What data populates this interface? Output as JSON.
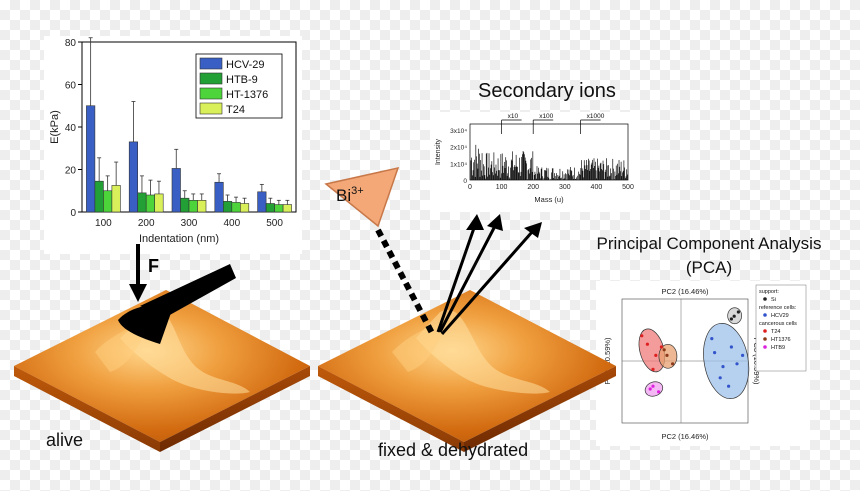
{
  "chart_data": [
    {
      "type": "bar",
      "ylabel": "E(kPa)",
      "xlabel": "Indentation (nm)",
      "categories": [
        "100",
        "200",
        "300",
        "400",
        "500"
      ],
      "ylim": [
        0,
        80
      ],
      "yticks": [
        "0",
        "20",
        "40",
        "60",
        "80"
      ],
      "legend_position": "top-right",
      "series": [
        {
          "name": "HCV-29",
          "color": "#3a5fc4",
          "values": [
            50,
            33,
            20.5,
            14,
            9.5
          ],
          "errors": [
            32,
            19,
            9,
            4,
            3.5
          ]
        },
        {
          "name": "HTB-9",
          "color": "#22a035",
          "values": [
            14.5,
            9,
            6.5,
            5,
            4
          ],
          "errors": [
            11,
            8,
            3.5,
            3,
            2.5
          ]
        },
        {
          "name": "HT-1376",
          "color": "#4cd43a",
          "values": [
            10,
            8,
            5.5,
            4.5,
            3.5
          ],
          "errors": [
            7,
            7,
            3,
            2.5,
            2
          ]
        },
        {
          "name": "T24",
          "color": "#d9f05a",
          "values": [
            12.5,
            8.5,
            5.5,
            4,
            3.5
          ],
          "errors": [
            11,
            6,
            3,
            2.5,
            2
          ]
        }
      ]
    },
    {
      "type": "bar",
      "title": "Secondary ions",
      "xlabel": "Mass (u)",
      "ylabel": "Intensity",
      "xlim": [
        0,
        500
      ],
      "xticks": [
        "0",
        "100",
        "200",
        "300",
        "400",
        "500"
      ],
      "yticks": [
        "0",
        "1x10⁴",
        "2x10⁴",
        "3x10⁴"
      ],
      "annotations": [
        "x10",
        "x100",
        "x1000"
      ]
    },
    {
      "type": "scatter",
      "title": "Principal Component Analysis (PCA)",
      "xlabel": "PC2 (16.46%)",
      "ylabel": "PC3 (10.59%)",
      "legend": {
        "support_header": "support:",
        "support_items": [
          {
            "name": "Si",
            "color": "#222222",
            "marker": "star"
          }
        ],
        "reference_header": "reference cells:",
        "reference_items": [
          {
            "name": "HCV29",
            "color": "#3355cc",
            "marker": "triangle"
          }
        ],
        "cancer_header": "cancerous cells",
        "cancer_items": [
          {
            "name": "T24",
            "color": "#e02020",
            "marker": "diamond"
          },
          {
            "name": "HT1376",
            "color": "#8b3a1a",
            "marker": "square"
          },
          {
            "name": "HTB9",
            "color": "#dd22dd",
            "marker": "diamond"
          }
        ]
      },
      "groups": [
        {
          "name": "HCV29",
          "color": "#3355cc",
          "points": [
            [
              1.2,
              0.3
            ],
            [
              1.5,
              -0.2
            ],
            [
              1.8,
              0.5
            ],
            [
              1.4,
              -0.6
            ],
            [
              2.0,
              -0.1
            ],
            [
              1.1,
              0.8
            ],
            [
              1.7,
              -0.9
            ],
            [
              2.2,
              0.2
            ]
          ]
        },
        {
          "name": "Si",
          "color": "#222222",
          "points": [
            [
              1.9,
              1.6
            ],
            [
              2.05,
              1.75
            ],
            [
              1.8,
              1.5
            ]
          ]
        },
        {
          "name": "T24",
          "color": "#e02020",
          "points": [
            [
              -1.2,
              0.6
            ],
            [
              -0.9,
              0.2
            ],
            [
              -1.4,
              0.9
            ],
            [
              -1.0,
              -0.3
            ],
            [
              -0.7,
              0.5
            ]
          ]
        },
        {
          "name": "HT1376",
          "color": "#8b3a1a",
          "points": [
            [
              -0.5,
              0.2
            ],
            [
              -0.3,
              -0.1
            ],
            [
              -0.6,
              0.4
            ]
          ]
        },
        {
          "name": "HTB9",
          "color": "#dd22dd",
          "points": [
            [
              -1.0,
              -0.9
            ],
            [
              -0.8,
              -1.1
            ],
            [
              -1.1,
              -1.0
            ]
          ]
        }
      ]
    }
  ],
  "labels": {
    "force": "F",
    "bi_ion": "Bi",
    "bi_charge": "3+",
    "alive": "alive",
    "fixed": "fixed & dehydrated"
  }
}
